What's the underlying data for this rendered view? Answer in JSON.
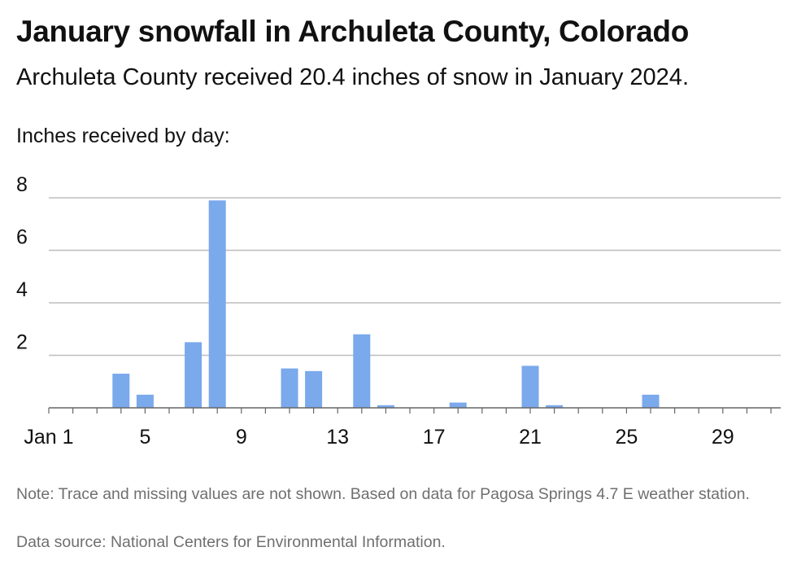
{
  "title": "January snowfall in Archuleta County, Colorado",
  "subtitle": "Archuleta County received 20.4 inches of snow in January 2024.",
  "y_caption": "Inches received by day:",
  "note": "Note: Trace and missing values are not shown. Based on data for Pagosa Springs 4.7 E weather station.",
  "source": "Data source: National Centers for Environmental Information.",
  "colors": {
    "bar": "#7aa9ec",
    "grid": "#bdbdbd",
    "axis": "#666666",
    "text": "#111111",
    "muted": "#6f6f6f"
  },
  "chart_data": {
    "type": "bar",
    "xlim": [
      1,
      31
    ],
    "ylim": [
      0,
      8
    ],
    "grid": true,
    "x_ticks": [
      {
        "value": 1,
        "label": "Jan 1"
      },
      {
        "value": 5,
        "label": "5"
      },
      {
        "value": 9,
        "label": "9"
      },
      {
        "value": 13,
        "label": "13"
      },
      {
        "value": 17,
        "label": "17"
      },
      {
        "value": 21,
        "label": "21"
      },
      {
        "value": 25,
        "label": "25"
      },
      {
        "value": 29,
        "label": "29"
      }
    ],
    "y_ticks": [
      {
        "value": 2,
        "label": "2"
      },
      {
        "value": 4,
        "label": "4"
      },
      {
        "value": 6,
        "label": "6"
      },
      {
        "value": 8,
        "label": "8"
      }
    ],
    "points": [
      {
        "day": 4,
        "inches": 1.3
      },
      {
        "day": 5,
        "inches": 0.5
      },
      {
        "day": 7,
        "inches": 2.5
      },
      {
        "day": 8,
        "inches": 7.9
      },
      {
        "day": 11,
        "inches": 1.5
      },
      {
        "day": 12,
        "inches": 1.4
      },
      {
        "day": 14,
        "inches": 2.8
      },
      {
        "day": 15,
        "inches": 0.1
      },
      {
        "day": 18,
        "inches": 0.2
      },
      {
        "day": 21,
        "inches": 1.6
      },
      {
        "day": 22,
        "inches": 0.1
      },
      {
        "day": 26,
        "inches": 0.5
      }
    ]
  }
}
